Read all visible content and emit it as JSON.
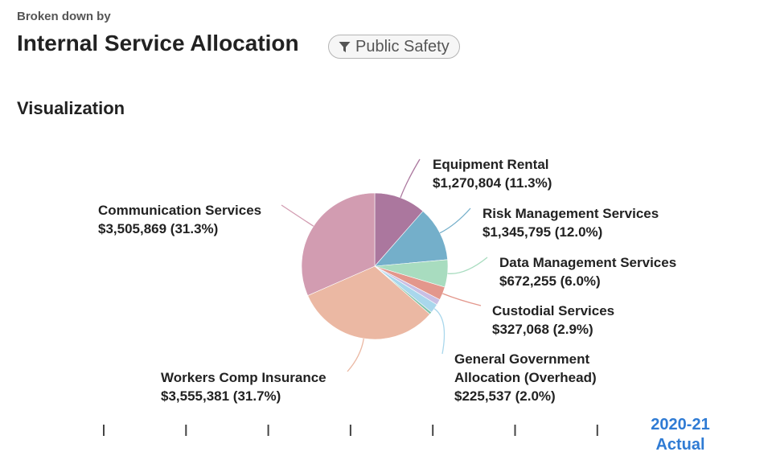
{
  "header": {
    "eyebrow": "Broken down by",
    "title": "Internal Service Allocation",
    "filter_label": "Public Safety"
  },
  "section": {
    "title": "Visualization"
  },
  "chart_data": {
    "type": "pie",
    "slices": [
      {
        "name": "Equipment Rental",
        "value": 1270804,
        "value_label": "$1,270,804 (11.3%)",
        "percent": 11.3,
        "color": "#ab779e"
      },
      {
        "name": "Risk Management Services",
        "value": 1345795,
        "value_label": "$1,345,795 (12.0%)",
        "percent": 12.0,
        "color": "#74afca"
      },
      {
        "name": "Data Management Services",
        "value": 672255,
        "value_label": "$672,255 (6.0%)",
        "percent": 6.0,
        "color": "#a8dcbf"
      },
      {
        "name": "Custodial Services",
        "value": 327068,
        "value_label": "$327,068 (2.9%)",
        "percent": 2.9,
        "color": "#e3978c"
      },
      {
        "name": "",
        "value": 140000,
        "value_label": "",
        "percent": 1.25,
        "color": "#c9bfe4"
      },
      {
        "name": "General Government Allocation (Overhead)",
        "name_lines": [
          "General Government",
          "Allocation (Overhead)"
        ],
        "value": 225537,
        "value_label": "$225,537 (2.0%)",
        "percent": 2.0,
        "color": "#a9d7ec"
      },
      {
        "name": "",
        "value": 60000,
        "value_label": "",
        "percent": 0.55,
        "color": "#7fc3a9"
      },
      {
        "name": "Workers Comp Insurance",
        "value": 3555381,
        "value_label": "$3,555,381 (31.7%)",
        "percent": 31.7,
        "color": "#ebb8a3"
      },
      {
        "name": "Communication Services",
        "value": 3505869,
        "value_label": "$3,505,869 (31.3%)",
        "percent": 31.3,
        "color": "#d29cb1"
      }
    ],
    "timeline": {
      "tick_count": 7,
      "selected_year": "2020-21",
      "selected_type": "Actual"
    }
  }
}
